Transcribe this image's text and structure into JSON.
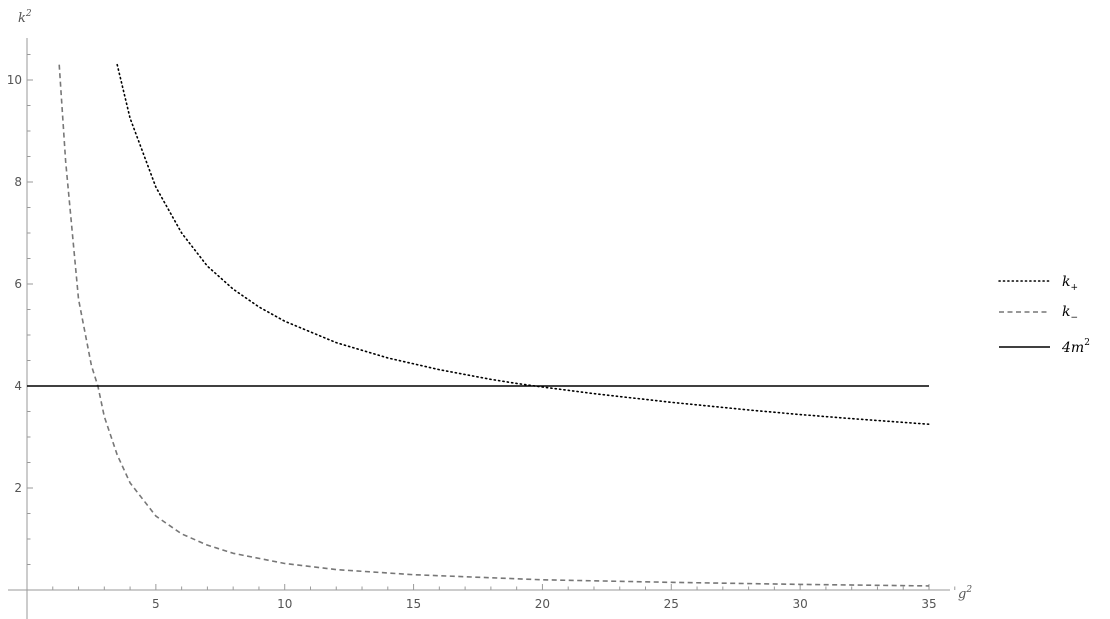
{
  "chart_data": {
    "type": "line",
    "xlabel": "g",
    "xlabel_sup": "2",
    "ylabel": "k",
    "ylabel_sup": "2",
    "xlim": [
      0,
      35
    ],
    "ylim": [
      0,
      10.5
    ],
    "xticks": [
      5,
      10,
      15,
      20,
      25,
      30,
      35
    ],
    "yticks": [
      2,
      4,
      6,
      8,
      10
    ],
    "grid": false,
    "legend_position": "right",
    "series": [
      {
        "name": "k",
        "name_sub": "+",
        "style": "dotted",
        "color": "#000000",
        "x": [
          3.5,
          4,
          5,
          6,
          7,
          8,
          9,
          10,
          12,
          14,
          16,
          18,
          19,
          20,
          22,
          25,
          28,
          30,
          32,
          35
        ],
        "y": [
          10.3,
          9.25,
          7.9,
          7.0,
          6.35,
          5.9,
          5.55,
          5.27,
          4.85,
          4.55,
          4.32,
          4.13,
          4.05,
          3.98,
          3.85,
          3.68,
          3.53,
          3.44,
          3.36,
          3.25
        ]
      },
      {
        "name": "k",
        "name_sub": "−",
        "style": "dashed",
        "color": "#777777",
        "x": [
          1.25,
          1.5,
          2,
          2.5,
          2.75,
          3,
          3.5,
          4,
          5,
          6,
          7,
          8,
          10,
          12,
          15,
          20,
          25,
          30,
          35
        ],
        "y": [
          10.3,
          8.4,
          5.7,
          4.4,
          4.0,
          3.4,
          2.65,
          2.1,
          1.45,
          1.1,
          0.88,
          0.72,
          0.52,
          0.4,
          0.3,
          0.2,
          0.15,
          0.11,
          0.08
        ]
      },
      {
        "name": "4m",
        "name_sup": "2",
        "style": "solid",
        "color": "#000000",
        "x": [
          0,
          35
        ],
        "y": [
          4,
          4
        ]
      }
    ]
  }
}
